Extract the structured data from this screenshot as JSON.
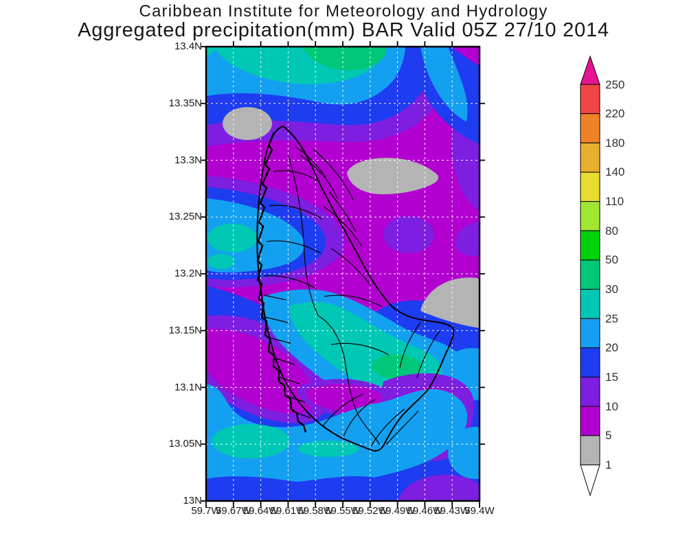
{
  "header": {
    "line1": "Caribbean Institute for Meteorology and Hydrology",
    "line2": "Aggregated precipitation(mm) BAR Valid 05Z 27/10 2014"
  },
  "map": {
    "lat_tick_labels": [
      "13.4N",
      "13.35N",
      "13.3N",
      "13.25N",
      "13.2N",
      "13.15N",
      "13.1N",
      "13.05N",
      "13N"
    ],
    "lon_tick_labels": [
      "59.7W",
      "59.67W",
      "59.64W",
      "59.61W",
      "59.58W",
      "59.55W",
      "59.52W",
      "59.49W",
      "59.46W",
      "59.43W",
      "59.4W"
    ],
    "grid_style": "white-dashed"
  },
  "legend": {
    "units": "mm",
    "tick_labels": [
      "250",
      "220",
      "180",
      "140",
      "110",
      "80",
      "50",
      "30",
      "25",
      "20",
      "15",
      "10",
      "5",
      "1"
    ],
    "segments_top_to_bottom": [
      "#f04646",
      "#f08228",
      "#e6af2d",
      "#e6dc32",
      "#a0e632",
      "#00d20a",
      "#00c878",
      "#00c8b4",
      "#14a0f0",
      "#1e3cf0",
      "#7d1ee0",
      "#b200d0",
      "#b4b4b4"
    ],
    "above_max_color": "#e61493",
    "below_min_color": "#ffffff"
  },
  "chart_data": {
    "type": "heatmap",
    "title": "Aggregated precipitation(mm) BAR Valid 05Z 27/10 2014",
    "contour_levels_mm": [
      1,
      5,
      10,
      15,
      20,
      25,
      30,
      50,
      80,
      110,
      140,
      180,
      220,
      250
    ],
    "level_colors": {
      "1-5": "#b4b4b4",
      "5-10": "#b200d0",
      "10-15": "#7d1ee0",
      "15-20": "#1e3cf0",
      "20-25": "#14a0f0",
      "25-30": "#00c8b4",
      "30-50": "#00c878",
      "50-80": "#00d20a",
      "80-110": "#a0e632",
      "110-140": "#e6dc32",
      "140-180": "#e6af2d",
      "180-220": "#f08228",
      "220-250": "#f04646",
      "above-250": "#e61493",
      "below-1": "#ffffff"
    },
    "lat_range": [
      "13N",
      "13.4N"
    ],
    "lon_range": [
      "59.7W",
      "59.4W"
    ],
    "notes_visible_features": "Barbados outline with watershed boundaries; dry gray patches (1-5mm) NW of island, east coast and center-right; wet green core ~30-50mm near 59.49W 13.12N; magenta 5-10mm background over north; cyan/blue 15-30mm over south"
  }
}
